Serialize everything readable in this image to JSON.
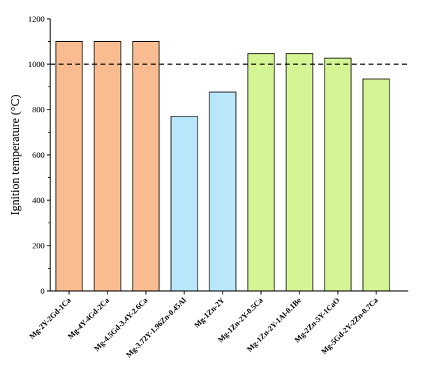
{
  "chart_data": {
    "type": "bar",
    "title": "",
    "xlabel": "",
    "ylabel": "Ignition temperature (°C)",
    "ylim": [
      0,
      1200
    ],
    "yticks": [
      0,
      200,
      400,
      600,
      800,
      1000,
      1200
    ],
    "grid": false,
    "reference_line": {
      "y": 1000,
      "style": "dashed",
      "color": "#000000"
    },
    "categories": [
      "Mg-2Y-2Gd-1Ca",
      "Mg-4Y-4Gd-2Ca",
      "Mg-4.5Gd-3.4Y-2.6Ca",
      "Mg-3.72Y-1.96Zn-0.45Al",
      "Mg-1Zn-2Y",
      "Mg-1Zn-2Y-0.5Ca",
      "Mg-1Zn-2Y-1Al-0.1Be",
      "Mg-2Zn-5Y-1CaO",
      "Mg-5Gd-2Y-2Zn-0.7Ca"
    ],
    "values": [
      1100,
      1100,
      1100,
      770,
      877,
      1047,
      1047,
      1027,
      935
    ],
    "bar_colors": [
      "#f9bc90",
      "#f9bc90",
      "#f9bc90",
      "#b8e6fa",
      "#b8e6fa",
      "#d4f594",
      "#d4f594",
      "#d4f594",
      "#d4f594"
    ]
  }
}
